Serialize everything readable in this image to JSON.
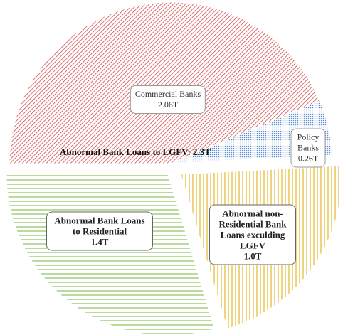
{
  "chart_data": {
    "type": "pie",
    "categories": [
      "Commercial Banks",
      "Policy Banks",
      "Abnormal non-Residential Bank Loans exculding LGFV",
      "Abnormal Bank Loans to  Residential"
    ],
    "values": [
      2.06,
      0.26,
      1.0,
      1.4
    ],
    "value_labels": [
      "2.06T",
      "0.26T",
      "1.0T",
      "1.4T"
    ],
    "colors": [
      "#d24a4a",
      "#5b8fcf",
      "#e6be3c",
      "#94c66a"
    ],
    "annotation": "Abnormal Bank Loans to LGFV: 2.3T"
  }
}
